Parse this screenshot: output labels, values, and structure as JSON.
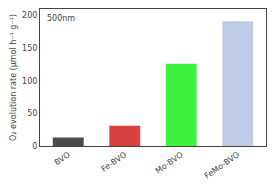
{
  "chart_data": {
    "type": "bar",
    "categories": [
      "BVO",
      "Fe-BVO",
      "Mo-BVO",
      "FeMo-BVO"
    ],
    "values": [
      12,
      30,
      125,
      190
    ],
    "colors": [
      "#111111",
      "#cc0000",
      "#00ee00",
      "#aabbdd"
    ],
    "ylabel": "O₂ evolution rate (μmol h⁻¹ g⁻¹)",
    "ylim": [
      0,
      210
    ],
    "yticks": [
      0,
      50,
      100,
      150,
      200
    ],
    "grid": false,
    "annotations": [
      "500nm"
    ]
  }
}
